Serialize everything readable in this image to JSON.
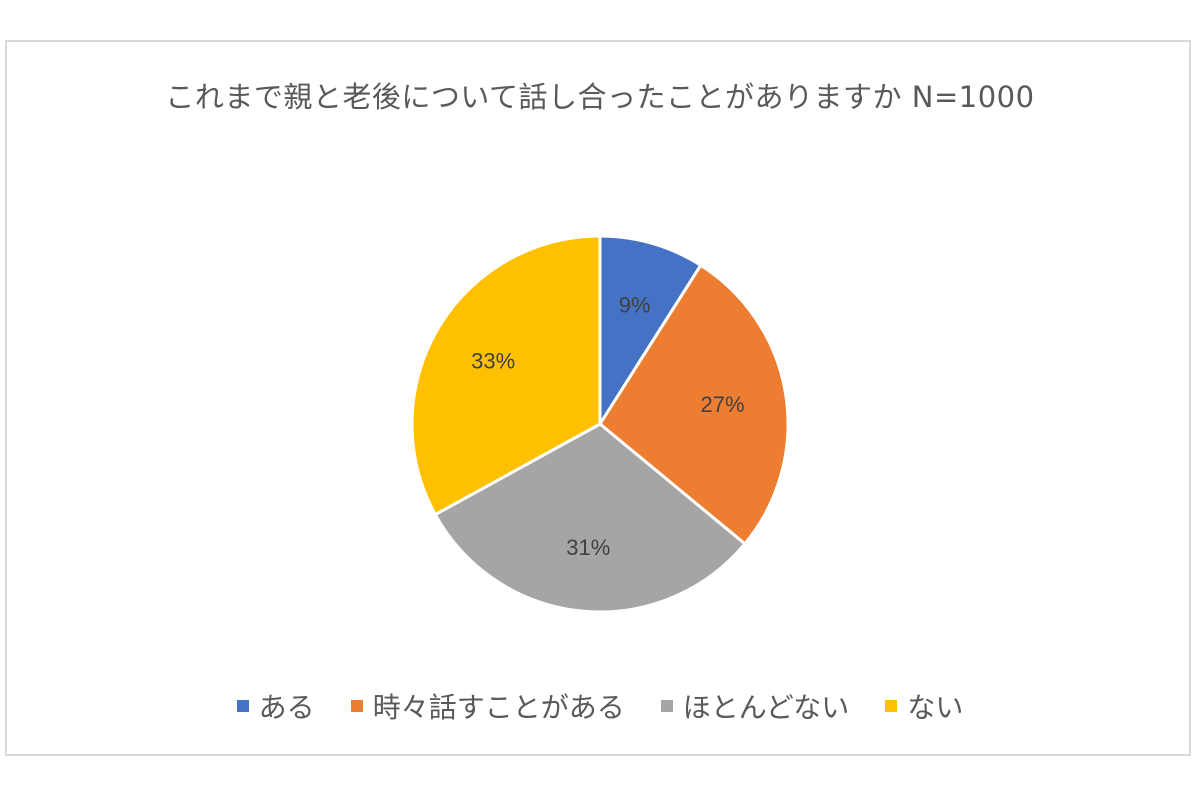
{
  "chart_data": {
    "type": "pie",
    "title": "これまで親と老後について話し合ったことがありますか N=1000",
    "categories": [
      "ある",
      "時々話すことがある",
      "ほとんどない",
      "ない"
    ],
    "values": [
      9,
      27,
      31,
      33
    ],
    "labels": [
      "9%",
      "27%",
      "31%",
      "33%"
    ],
    "colors": [
      "#4472C4",
      "#ED7D31",
      "#A5A5A5",
      "#FFC000"
    ],
    "legend_position": "bottom"
  }
}
